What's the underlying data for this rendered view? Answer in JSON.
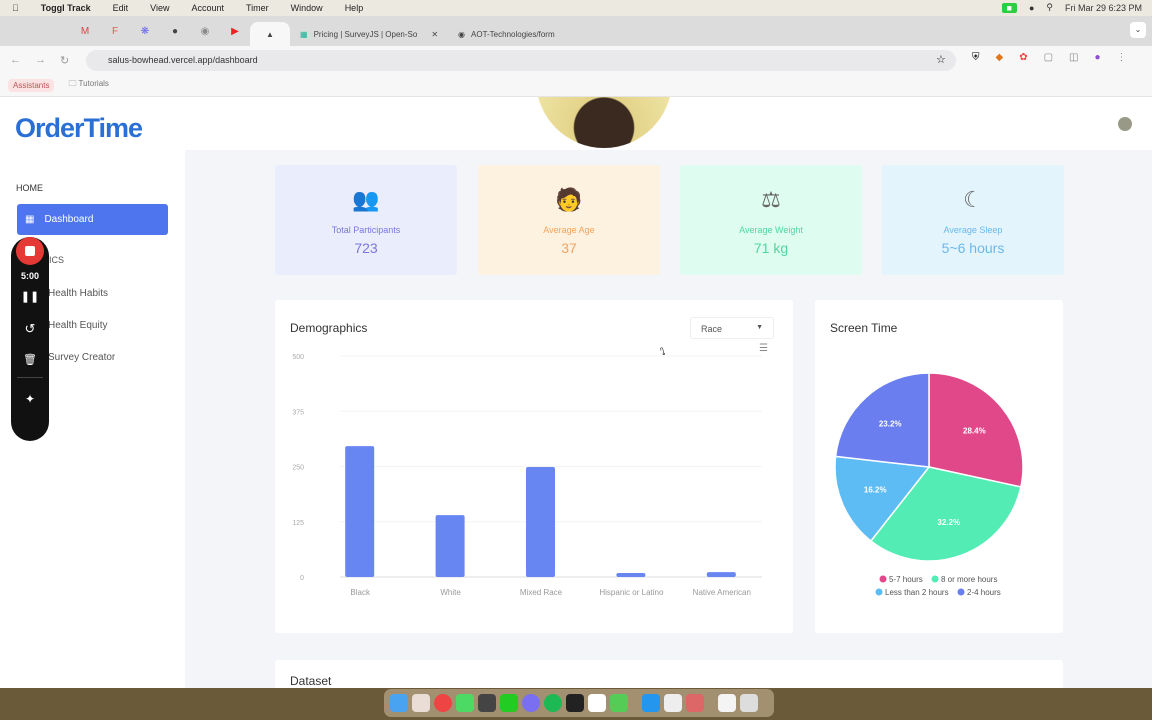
{
  "menubar": {
    "app": "Toggl Track",
    "items": [
      "Edit",
      "View",
      "Account",
      "Timer",
      "Window",
      "Help"
    ],
    "clock": "Fri Mar 29  6:23 PM"
  },
  "browser": {
    "tabs": [
      {
        "title": "Pricing | SurveyJS | Open-So"
      },
      {
        "title": "AOT-Technologies/form"
      }
    ],
    "url": "salus-bowhead.vercel.app/dashboard",
    "bookmarks": [
      "Assistants",
      "Tutorials"
    ]
  },
  "sidebar": {
    "logo": "OrderTime",
    "home_heading": "HOME",
    "dashboard": "Dashboard",
    "section_heading": "ICS",
    "items": [
      "Health Habits",
      "Health Equity",
      "Survey Creator"
    ]
  },
  "recorder": {
    "time": "5:00"
  },
  "stats": [
    {
      "label": "Total Participants",
      "value": "723",
      "icon": "people-icon",
      "color": "#7a78d8",
      "bg": "#e9edfc"
    },
    {
      "label": "Average Age",
      "value": "37",
      "icon": "age-icon",
      "color": "#f0a460",
      "bg": "#fdf2e0"
    },
    {
      "label": "Average Weight",
      "value": "71 kg",
      "icon": "scale-icon",
      "color": "#52d6a0",
      "bg": "#defcf0"
    },
    {
      "label": "Average Sleep",
      "value": "5~6 hours",
      "icon": "sleep-icon",
      "color": "#6ab8ec",
      "bg": "#e4f4fc"
    }
  ],
  "demographics": {
    "title": "Demographics",
    "dropdown": "Race"
  },
  "screen_time": {
    "title": "Screen Time"
  },
  "dataset": {
    "title": "Dataset"
  },
  "chart_data": [
    {
      "type": "bar",
      "title": "Demographics",
      "categories": [
        "Black",
        "White",
        "Mixed Race",
        "Hispanic or Latino",
        "Native American"
      ],
      "values": [
        296,
        140,
        249,
        9,
        11
      ],
      "ylim": [
        0,
        500
      ],
      "yticks": [
        0,
        125,
        250,
        375,
        500
      ],
      "color": "#6786f2",
      "grid": true
    },
    {
      "type": "pie",
      "title": "Screen Time",
      "legend_position": "bottom",
      "slices": [
        {
          "name": "5-7 hours",
          "value": 28.4,
          "label": "28.4%",
          "color": "#e0488a"
        },
        {
          "name": "8 or more hours",
          "value": 32.2,
          "label": "32.2%",
          "color": "#52ecb4"
        },
        {
          "name": "Less than 2 hours",
          "value": 16.2,
          "label": "16.2%",
          "color": "#5ebcf4"
        },
        {
          "name": "2-4 hours",
          "value": 23.2,
          "label": "23.2%",
          "color": "#6a7ef0"
        }
      ]
    }
  ]
}
